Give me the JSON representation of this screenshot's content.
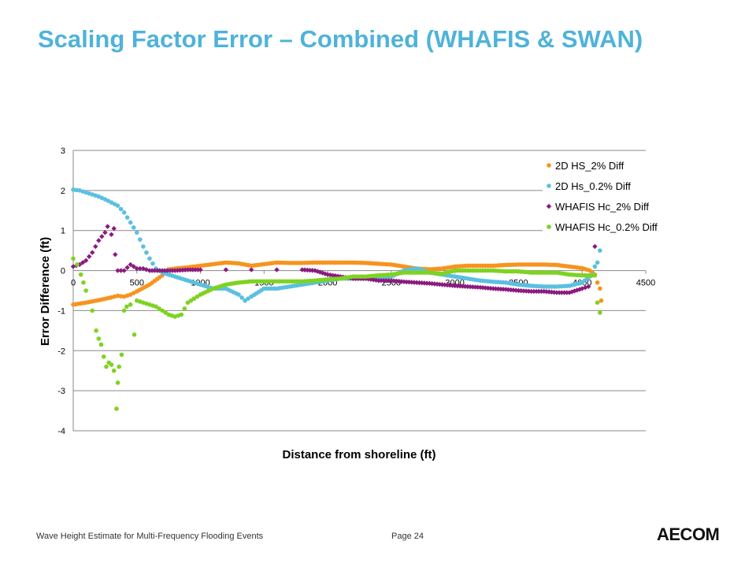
{
  "slide": {
    "title": "Scaling Factor Error – Combined (WHAFIS & SWAN)",
    "footer_left": "Wave Height Estimate for Multi-Frequency Flooding Events",
    "footer_page": "Page 24",
    "logo_text": "AECOM"
  },
  "chart_data": {
    "type": "scatter",
    "title": "",
    "xlabel": "Distance from shoreline (ft)",
    "ylabel": "Error Difference (ft)",
    "xlim": [
      0,
      4500
    ],
    "ylim": [
      -4,
      3
    ],
    "x_ticks": [
      "0",
      "500",
      "1000",
      "1500",
      "2000",
      "2500",
      "3000",
      "3500",
      "4000",
      "4500"
    ],
    "y_ticks": [
      "3",
      "2",
      "1",
      "0",
      "-1",
      "-2",
      "-3",
      "-4"
    ],
    "grid": "horizontal",
    "legend_position": "top-right",
    "series": [
      {
        "name": "2D HS_2% Diff",
        "color": "#f7931e",
        "marker": "circle",
        "points": [
          [
            0,
            -0.85
          ],
          [
            100,
            -0.8
          ],
          [
            200,
            -0.74
          ],
          [
            300,
            -0.67
          ],
          [
            350,
            -0.63
          ],
          [
            400,
            -0.65
          ],
          [
            450,
            -0.6
          ],
          [
            500,
            -0.52
          ],
          [
            600,
            -0.35
          ],
          [
            700,
            -0.12
          ],
          [
            750,
            0.03
          ],
          [
            800,
            0.05
          ],
          [
            900,
            0.08
          ],
          [
            1000,
            0.12
          ],
          [
            1100,
            0.16
          ],
          [
            1200,
            0.2
          ],
          [
            1300,
            0.18
          ],
          [
            1400,
            0.12
          ],
          [
            1500,
            0.16
          ],
          [
            1600,
            0.2
          ],
          [
            1700,
            0.19
          ],
          [
            1800,
            0.19
          ],
          [
            1900,
            0.2
          ],
          [
            2000,
            0.2
          ],
          [
            2100,
            0.2
          ],
          [
            2200,
            0.2
          ],
          [
            2300,
            0.19
          ],
          [
            2400,
            0.17
          ],
          [
            2500,
            0.15
          ],
          [
            2600,
            0.1
          ],
          [
            2700,
            0.05
          ],
          [
            2800,
            0.03
          ],
          [
            2900,
            0.05
          ],
          [
            3000,
            0.1
          ],
          [
            3100,
            0.12
          ],
          [
            3200,
            0.12
          ],
          [
            3300,
            0.12
          ],
          [
            3400,
            0.14
          ],
          [
            3500,
            0.15
          ],
          [
            3600,
            0.15
          ],
          [
            3700,
            0.15
          ],
          [
            3800,
            0.14
          ],
          [
            3900,
            0.1
          ],
          [
            4000,
            0.06
          ],
          [
            4060,
            0.0
          ],
          [
            4100,
            -0.1
          ],
          [
            4120,
            -0.3
          ],
          [
            4140,
            -0.45
          ],
          [
            4150,
            -0.75
          ]
        ]
      },
      {
        "name": "2D Hs_0.2% Diff",
        "color": "#5bc0e0",
        "marker": "circle",
        "points": [
          [
            0,
            2.02
          ],
          [
            50,
            2.0
          ],
          [
            100,
            1.95
          ],
          [
            150,
            1.9
          ],
          [
            200,
            1.85
          ],
          [
            250,
            1.78
          ],
          [
            300,
            1.7
          ],
          [
            350,
            1.62
          ],
          [
            400,
            1.45
          ],
          [
            450,
            1.2
          ],
          [
            500,
            0.95
          ],
          [
            550,
            0.6
          ],
          [
            600,
            0.3
          ],
          [
            650,
            0.05
          ],
          [
            700,
            -0.05
          ],
          [
            800,
            -0.15
          ],
          [
            900,
            -0.25
          ],
          [
            1000,
            -0.35
          ],
          [
            1100,
            -0.45
          ],
          [
            1200,
            -0.45
          ],
          [
            1300,
            -0.6
          ],
          [
            1350,
            -0.75
          ],
          [
            1400,
            -0.65
          ],
          [
            1500,
            -0.45
          ],
          [
            1600,
            -0.45
          ],
          [
            1700,
            -0.4
          ],
          [
            1800,
            -0.35
          ],
          [
            1900,
            -0.3
          ],
          [
            2000,
            -0.25
          ],
          [
            2100,
            -0.2
          ],
          [
            2200,
            -0.2
          ],
          [
            2300,
            -0.2
          ],
          [
            2400,
            -0.18
          ],
          [
            2500,
            -0.15
          ],
          [
            2600,
            0.0
          ],
          [
            2700,
            0.05
          ],
          [
            2800,
            -0.05
          ],
          [
            2900,
            -0.1
          ],
          [
            3000,
            -0.15
          ],
          [
            3100,
            -0.2
          ],
          [
            3200,
            -0.25
          ],
          [
            3300,
            -0.28
          ],
          [
            3400,
            -0.3
          ],
          [
            3500,
            -0.35
          ],
          [
            3600,
            -0.38
          ],
          [
            3700,
            -0.4
          ],
          [
            3800,
            -0.4
          ],
          [
            3900,
            -0.38
          ],
          [
            4000,
            -0.3
          ],
          [
            4080,
            -0.1
          ],
          [
            4100,
            0.1
          ],
          [
            4120,
            0.2
          ],
          [
            4140,
            0.5
          ]
        ]
      },
      {
        "name": "WHAFIS Hc_2% Diff",
        "color": "#8b1a7e",
        "marker": "diamond",
        "points": [
          [
            0,
            0.1
          ],
          [
            50,
            0.15
          ],
          [
            100,
            0.25
          ],
          [
            150,
            0.45
          ],
          [
            200,
            0.75
          ],
          [
            250,
            0.95
          ],
          [
            270,
            1.1
          ],
          [
            300,
            0.9
          ],
          [
            320,
            1.05
          ],
          [
            330,
            0.4
          ],
          [
            350,
            0.0
          ],
          [
            400,
            0.0
          ],
          [
            450,
            0.15
          ],
          [
            500,
            0.05
          ],
          [
            550,
            0.05
          ],
          [
            600,
            0.0
          ],
          [
            700,
            0.0
          ],
          [
            800,
            0.0
          ],
          [
            900,
            0.02
          ],
          [
            1000,
            0.02
          ],
          [
            1200,
            0.02
          ],
          [
            1400,
            0.02
          ],
          [
            1600,
            0.02
          ],
          [
            1800,
            0.02
          ],
          [
            1900,
            0.0
          ],
          [
            2000,
            -0.1
          ],
          [
            2100,
            -0.15
          ],
          [
            2200,
            -0.2
          ],
          [
            2300,
            -0.2
          ],
          [
            2400,
            -0.25
          ],
          [
            2500,
            -0.25
          ],
          [
            2600,
            -0.28
          ],
          [
            2700,
            -0.3
          ],
          [
            2800,
            -0.32
          ],
          [
            2900,
            -0.35
          ],
          [
            3000,
            -0.38
          ],
          [
            3100,
            -0.4
          ],
          [
            3200,
            -0.42
          ],
          [
            3300,
            -0.45
          ],
          [
            3400,
            -0.47
          ],
          [
            3500,
            -0.5
          ],
          [
            3600,
            -0.52
          ],
          [
            3700,
            -0.52
          ],
          [
            3800,
            -0.55
          ],
          [
            3900,
            -0.55
          ],
          [
            4000,
            -0.45
          ],
          [
            4050,
            -0.4
          ],
          [
            4100,
            0.6
          ]
        ]
      },
      {
        "name": "WHAFIS Hc_0.2% Diff",
        "color": "#7ed321",
        "marker": "circle",
        "points": [
          [
            0,
            0.3
          ],
          [
            30,
            0.15
          ],
          [
            60,
            -0.1
          ],
          [
            100,
            -0.5
          ],
          [
            150,
            -1.0
          ],
          [
            180,
            -1.5
          ],
          [
            200,
            -1.7
          ],
          [
            220,
            -1.85
          ],
          [
            240,
            -2.15
          ],
          [
            260,
            -2.4
          ],
          [
            280,
            -2.3
          ],
          [
            300,
            -2.35
          ],
          [
            320,
            -2.5
          ],
          [
            340,
            -3.45
          ],
          [
            350,
            -2.8
          ],
          [
            360,
            -2.4
          ],
          [
            380,
            -2.1
          ],
          [
            400,
            -1.0
          ],
          [
            420,
            -0.9
          ],
          [
            450,
            -0.85
          ],
          [
            480,
            -1.6
          ],
          [
            500,
            -0.75
          ],
          [
            550,
            -0.8
          ],
          [
            600,
            -0.85
          ],
          [
            650,
            -0.9
          ],
          [
            700,
            -1.0
          ],
          [
            750,
            -1.1
          ],
          [
            800,
            -1.15
          ],
          [
            850,
            -1.1
          ],
          [
            900,
            -0.8
          ],
          [
            950,
            -0.7
          ],
          [
            1000,
            -0.6
          ],
          [
            1100,
            -0.45
          ],
          [
            1200,
            -0.35
          ],
          [
            1300,
            -0.3
          ],
          [
            1400,
            -0.27
          ],
          [
            1500,
            -0.27
          ],
          [
            1600,
            -0.27
          ],
          [
            1700,
            -0.27
          ],
          [
            1800,
            -0.27
          ],
          [
            1900,
            -0.25
          ],
          [
            2000,
            -0.22
          ],
          [
            2100,
            -0.2
          ],
          [
            2200,
            -0.15
          ],
          [
            2300,
            -0.15
          ],
          [
            2400,
            -0.12
          ],
          [
            2500,
            -0.1
          ],
          [
            2600,
            -0.05
          ],
          [
            2700,
            -0.05
          ],
          [
            2800,
            -0.05
          ],
          [
            2900,
            -0.08
          ],
          [
            3000,
            0.0
          ],
          [
            3100,
            0.0
          ],
          [
            3200,
            0.0
          ],
          [
            3300,
            0.0
          ],
          [
            3400,
            -0.02
          ],
          [
            3500,
            -0.02
          ],
          [
            3600,
            -0.05
          ],
          [
            3700,
            -0.05
          ],
          [
            3800,
            -0.05
          ],
          [
            3900,
            -0.1
          ],
          [
            4000,
            -0.12
          ],
          [
            4100,
            -0.12
          ],
          [
            4120,
            -0.8
          ],
          [
            4140,
            -1.05
          ]
        ]
      }
    ]
  }
}
